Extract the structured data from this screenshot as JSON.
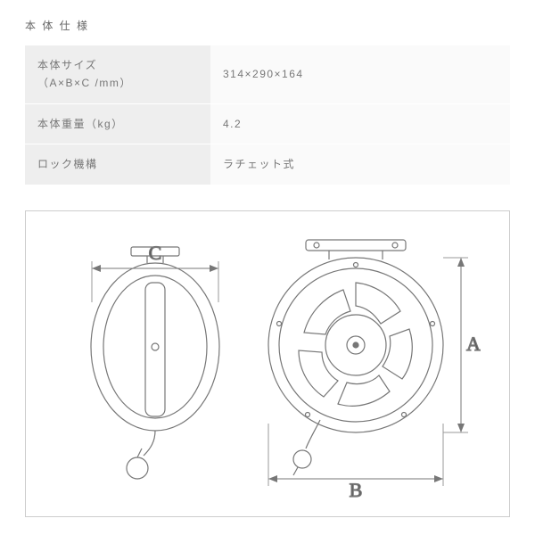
{
  "section_title": "本 体 仕 様",
  "rows": [
    {
      "label": "本体サイズ\n（A×B×C /mm）",
      "value": "314×290×164"
    },
    {
      "label": "本体重量（kg）",
      "value": "4.2"
    },
    {
      "label": "ロック機構",
      "value": "ラチェット式"
    }
  ],
  "diagram": {
    "labels": {
      "A": "A",
      "B": "B",
      "C": "C"
    },
    "stroke": "#777777",
    "stroke_thin": "#999999",
    "text_color": "#555555",
    "bg": "#ffffff"
  }
}
